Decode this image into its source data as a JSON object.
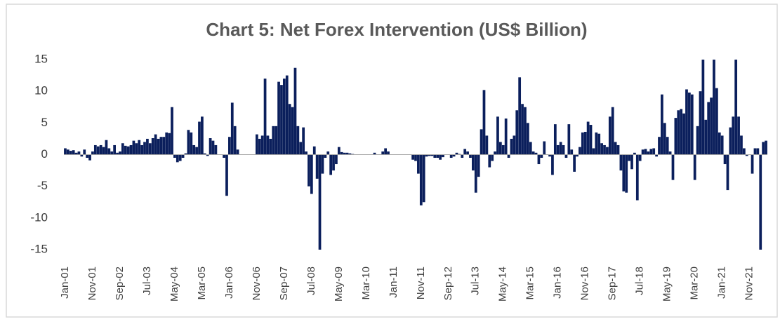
{
  "chart_data": {
    "type": "bar",
    "title": "Chart 5: Net Forex Intervention (US$ Billion)",
    "categories": [
      "Jan-01",
      null,
      null,
      null,
      null,
      null,
      null,
      null,
      null,
      null,
      "Nov-01",
      null,
      null,
      null,
      null,
      null,
      null,
      null,
      null,
      null,
      "Sep-02",
      null,
      null,
      null,
      null,
      null,
      null,
      null,
      null,
      null,
      "Jul-03",
      null,
      null,
      null,
      null,
      null,
      null,
      null,
      null,
      null,
      "May-04",
      null,
      null,
      null,
      null,
      null,
      null,
      null,
      null,
      null,
      "Mar-05",
      null,
      null,
      null,
      null,
      null,
      null,
      null,
      null,
      null,
      "Jan-06",
      null,
      null,
      null,
      null,
      null,
      null,
      null,
      null,
      null,
      "Nov-06",
      null,
      null,
      null,
      null,
      null,
      null,
      null,
      null,
      null,
      "Sep-07",
      null,
      null,
      null,
      null,
      null,
      null,
      null,
      null,
      null,
      "Jul-08",
      null,
      null,
      null,
      null,
      null,
      null,
      null,
      null,
      null,
      "May-09",
      null,
      null,
      null,
      null,
      null,
      null,
      null,
      null,
      null,
      "Mar-10",
      null,
      null,
      null,
      null,
      null,
      null,
      null,
      null,
      null,
      "Jan-11",
      null,
      null,
      null,
      null,
      null,
      null,
      null,
      null,
      null,
      "Nov-11",
      null,
      null,
      null,
      null,
      null,
      null,
      null,
      null,
      null,
      "Sep-12",
      null,
      null,
      null,
      null,
      null,
      null,
      null,
      null,
      null,
      "Jul-13",
      null,
      null,
      null,
      null,
      null,
      null,
      null,
      null,
      null,
      "May-14",
      null,
      null,
      null,
      null,
      null,
      null,
      null,
      null,
      null,
      "Mar-15",
      null,
      null,
      null,
      null,
      null,
      null,
      null,
      null,
      null,
      "Jan-16",
      null,
      null,
      null,
      null,
      null,
      null,
      null,
      null,
      null,
      "Nov-16",
      null,
      null,
      null,
      null,
      null,
      null,
      null,
      null,
      null,
      "Sep-17",
      null,
      null,
      null,
      null,
      null,
      null,
      null,
      null,
      null,
      "Jul-18",
      null,
      null,
      null,
      null,
      null,
      null,
      null,
      null,
      null,
      "May-19",
      null,
      null,
      null,
      null,
      null,
      null,
      null,
      null,
      null,
      "Mar-20",
      null,
      null,
      null,
      null,
      null,
      null,
      null,
      null,
      null,
      "Jan-21",
      null,
      null,
      null,
      null,
      null,
      null,
      null,
      null,
      null,
      "Nov-21",
      null,
      null,
      null,
      null,
      null,
      null
    ],
    "values": [
      1.0,
      0.8,
      0.6,
      0.7,
      0.3,
      0.5,
      -0.3,
      0.8,
      -0.5,
      -0.9,
      0.5,
      1.5,
      1.3,
      1.5,
      1.2,
      2.3,
      1.0,
      0.5,
      1.5,
      0.3,
      0.5,
      1.8,
      1.4,
      1.3,
      1.5,
      2.2,
      1.8,
      2.3,
      1.5,
      2.0,
      2.5,
      1.8,
      2.6,
      3.2,
      2.5,
      2.8,
      2.8,
      3.5,
      3.4,
      7.5,
      -0.5,
      -1.2,
      -1.0,
      -0.5,
      0.2,
      3.9,
      3.5,
      1.5,
      1.2,
      5.2,
      6.0,
      0.2,
      -0.2,
      2.6,
      2.2,
      1.5,
      0,
      0,
      -0.5,
      -6.5,
      2.8,
      8.2,
      4.5,
      0.8,
      0,
      0,
      0,
      0,
      0,
      0,
      3.2,
      2.5,
      3.0,
      12.0,
      3.0,
      2.5,
      4.5,
      4.5,
      11.5,
      11.0,
      12.0,
      12.5,
      8.0,
      7.5,
      13.7,
      4.5,
      2.0,
      4.3,
      0.5,
      -5.0,
      -6.2,
      1.3,
      -3.8,
      -15,
      -3.0,
      -0.5,
      0.5,
      -3.2,
      -2.5,
      -1.5,
      1.2,
      0.4,
      0.3,
      0.3,
      0.2,
      0.1,
      0,
      0,
      0,
      0,
      0,
      0,
      0,
      0.3,
      0,
      0,
      0.5,
      1.0,
      0.5,
      0,
      0,
      0,
      0,
      0,
      0,
      0,
      0,
      -0.8,
      -1.0,
      -3.0,
      -8.0,
      -7.5,
      -0.3,
      -0.2,
      -0.2,
      -0.5,
      -0.5,
      -0.8,
      -0.4,
      0,
      0,
      -0.5,
      -0.3,
      0.3,
      0.1,
      -0.5,
      0.9,
      0.5,
      -0.5,
      -2.5,
      -6.0,
      -3.5,
      4.0,
      10.2,
      3.0,
      -2.0,
      -1.0,
      0.5,
      6.0,
      2.0,
      1.5,
      5.7,
      -0.5,
      2.5,
      3.0,
      7.0,
      12.2,
      8.0,
      7.5,
      5.0,
      2.0,
      0.5,
      0.3,
      -1.5,
      -0.5,
      2.1,
      0,
      -0.3,
      -3.2,
      4.8,
      1.5,
      2.0,
      1.5,
      -0.5,
      4.8,
      0.8,
      -2.7,
      -0.3,
      1.2,
      3.5,
      3.6,
      5.2,
      4.7,
      1.0,
      3.5,
      3.3,
      1.8,
      1.5,
      1.2,
      6.0,
      7.5,
      2.0,
      1.5,
      -2.5,
      -5.8,
      -6.0,
      -1.0,
      -2.3,
      0.3,
      -7.2,
      -1.0,
      0.8,
      0.9,
      0.5,
      0.9,
      1.0,
      -0.3,
      2.8,
      9.5,
      5.0,
      2.8,
      0.5,
      -4.0,
      5.8,
      7.0,
      7.2,
      6.5,
      10.3,
      9.8,
      9.5,
      -4.0,
      4.5,
      10.0,
      15,
      5.5,
      8.3,
      9.0,
      15,
      10.5,
      3.5,
      3.0,
      -1.5,
      -5.6,
      4.3,
      6.0,
      15,
      6.0,
      3.0,
      1.0,
      -0.2,
      0,
      -3.0,
      1.0,
      1.0,
      -15,
      2.0,
      2.2
    ],
    "color": "#0b1f5c",
    "ylim": [
      -15,
      15
    ],
    "yticks": [
      -15,
      -10,
      -5,
      0,
      5,
      10,
      15
    ],
    "grid": false
  }
}
